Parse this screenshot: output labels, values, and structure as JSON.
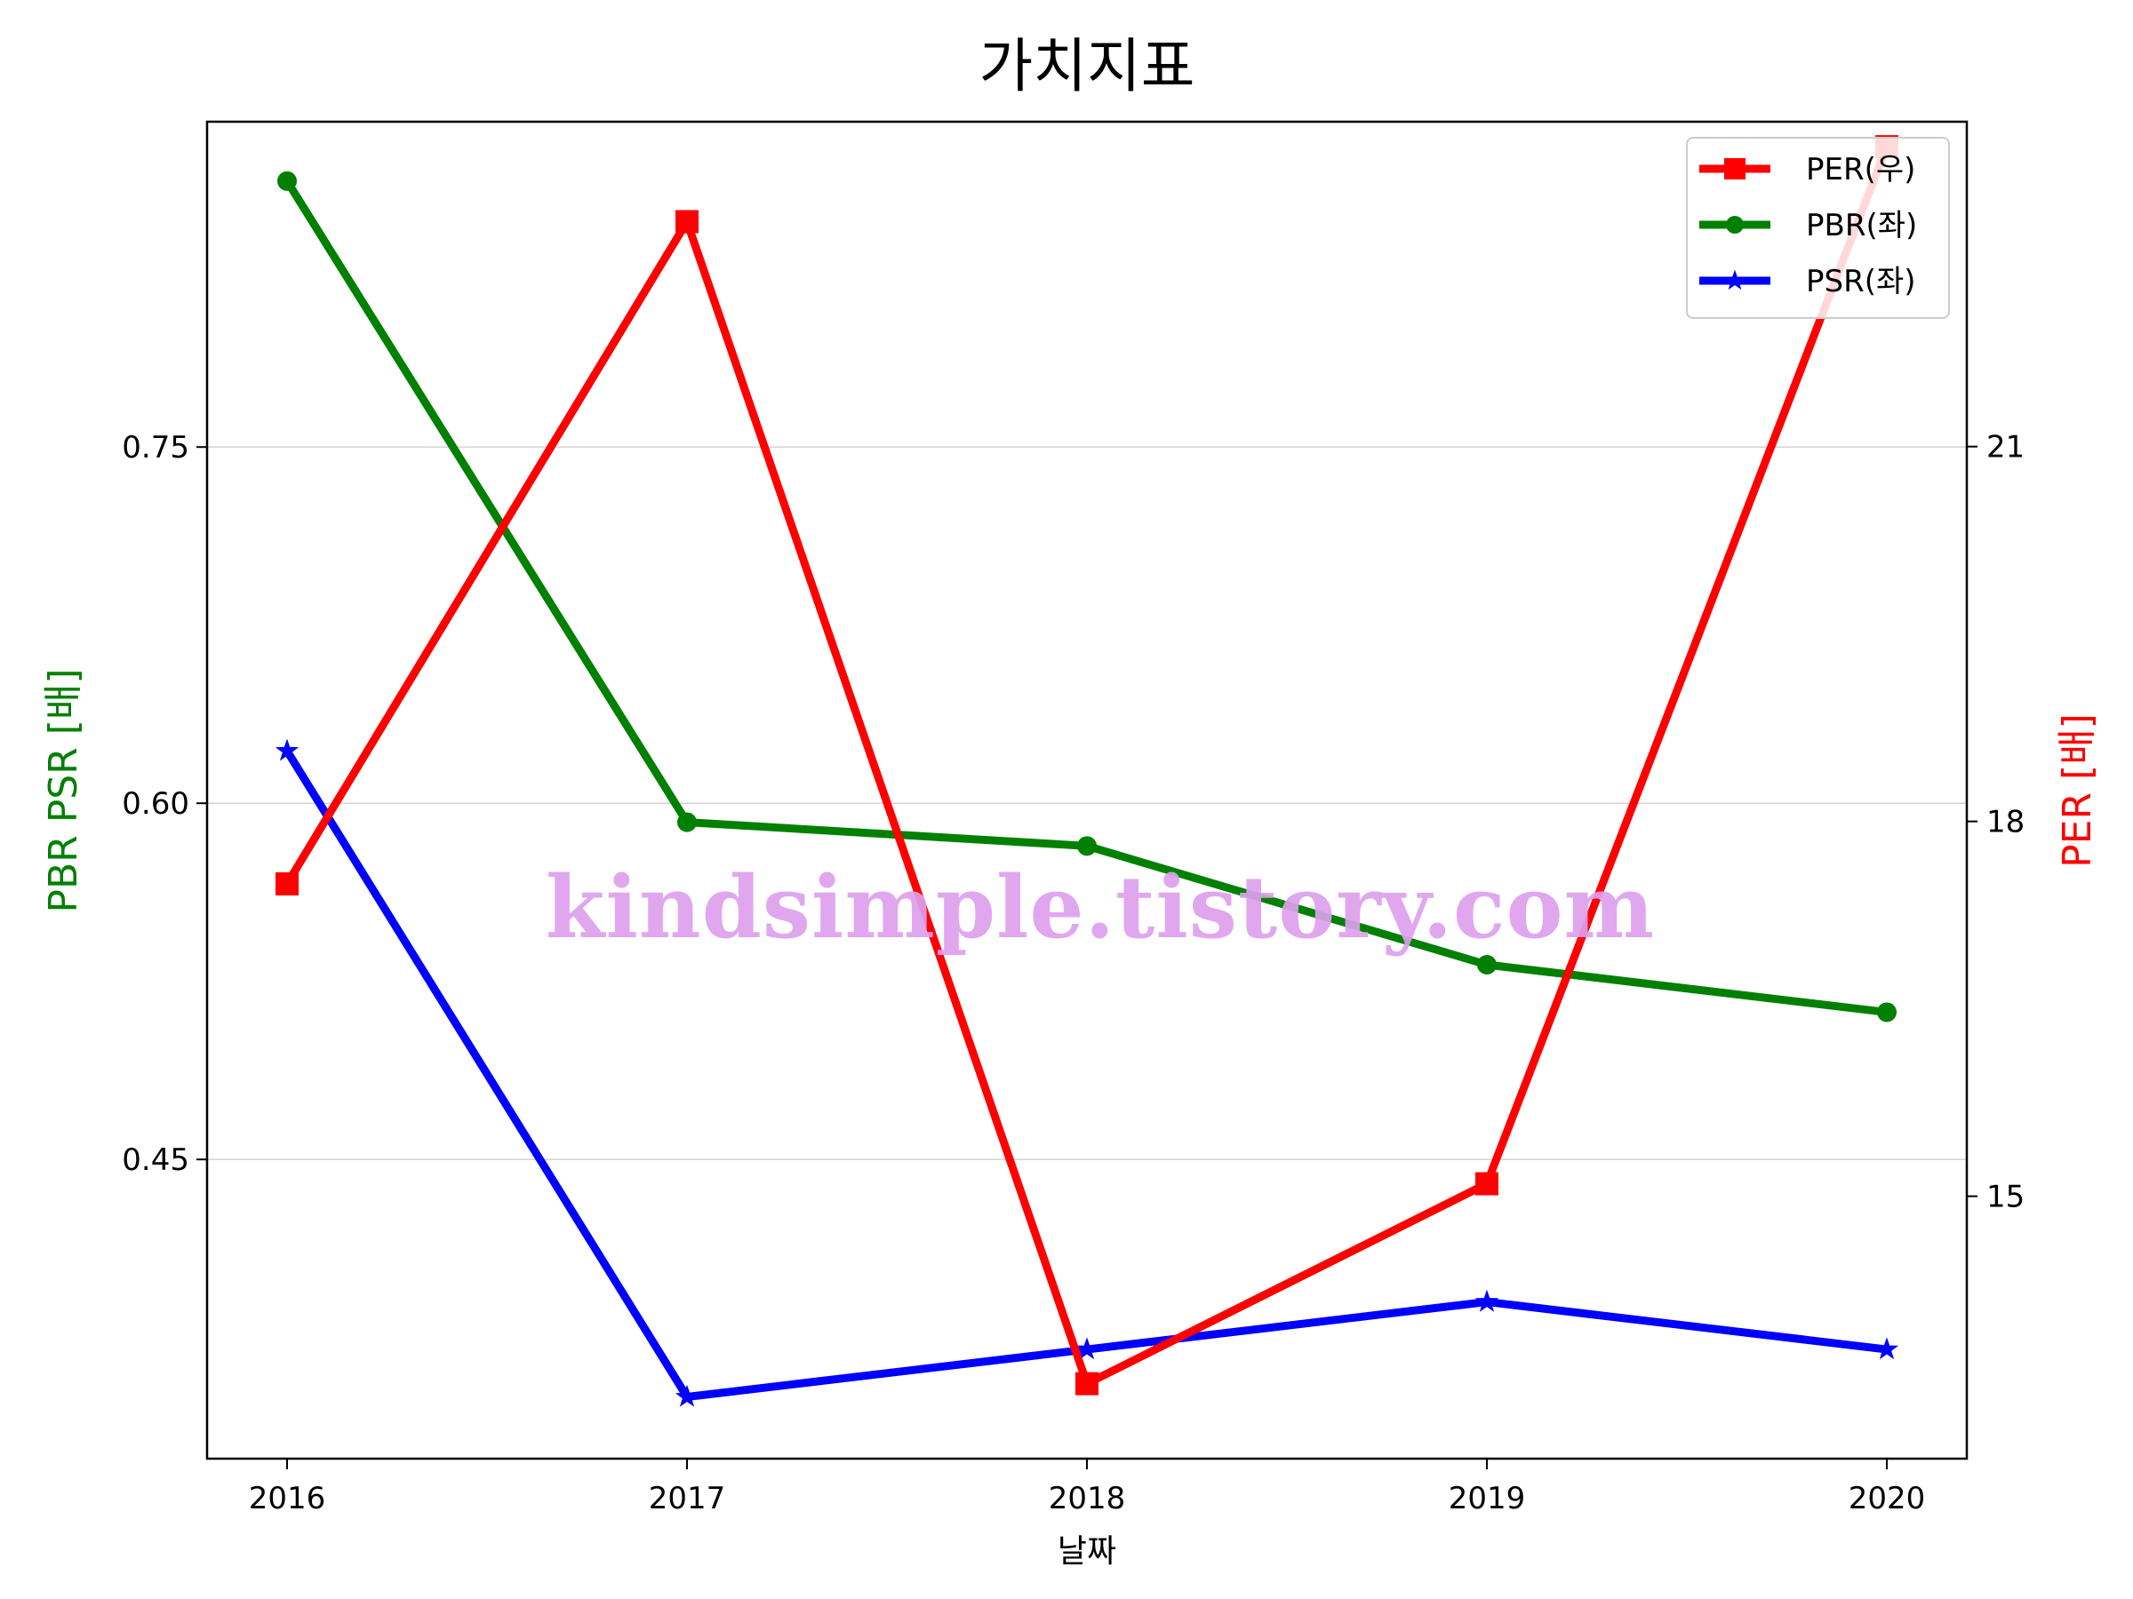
{
  "chart_data": {
    "type": "line",
    "title": "가치지표",
    "xlabel": "날짜",
    "ylabel_left": "PBR PSR [배]",
    "ylabel_right": "PER [배]",
    "categories": [
      "2016",
      "2017",
      "2018",
      "2019",
      "2020"
    ],
    "y_left": {
      "ticks": [
        "0.45",
        "0.60",
        "0.75"
      ],
      "tick_values": [
        0.45,
        0.6,
        0.75
      ],
      "range": [
        0.324,
        0.887
      ]
    },
    "y_right": {
      "ticks": [
        "15",
        "18",
        "21"
      ],
      "tick_values": [
        15,
        18,
        21
      ],
      "range": [
        12.9,
        23.6
      ]
    },
    "grid": "horizontal (left axis)",
    "legend_position": "top-right",
    "series": [
      {
        "name": "PER(우)",
        "axis": "right",
        "color": "#ff0000",
        "marker": "square",
        "values": [
          17.5,
          22.8,
          13.5,
          15.1,
          23.4
        ]
      },
      {
        "name": "PBR(좌)",
        "axis": "left",
        "color": "#008000",
        "marker": "circle",
        "values": [
          0.862,
          0.592,
          0.582,
          0.532,
          0.512
        ]
      },
      {
        "name": "PSR(좌)",
        "axis": "left",
        "color": "#0000ff",
        "marker": "star",
        "values": [
          0.622,
          0.35,
          0.37,
          0.39,
          0.37
        ]
      }
    ],
    "watermark": "kindsimple.tistory.com"
  }
}
